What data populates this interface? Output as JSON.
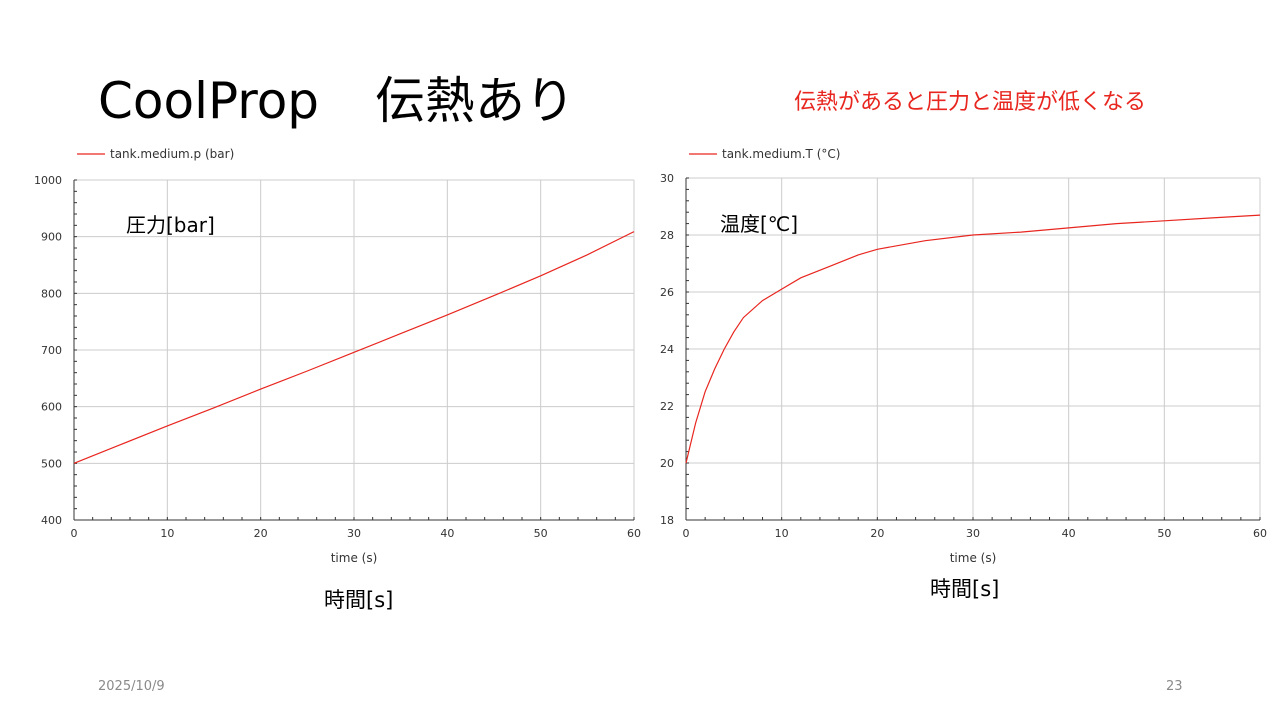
{
  "slide": {
    "title_en": "CoolProp",
    "title_jp": "伝熱あり",
    "note": "伝熱があると圧力と温度が低くなる",
    "date": "2025/10/9",
    "page": "23"
  },
  "colors": {
    "series": "#e8261f",
    "grid": "#cccccc",
    "axis": "#333333"
  },
  "chart_data": [
    {
      "type": "line",
      "xlabel": "time (s)",
      "ylabel": "",
      "xlim": [
        0,
        60
      ],
      "ylim": [
        400,
        1000
      ],
      "xticks": [
        0,
        10,
        20,
        30,
        40,
        50,
        60
      ],
      "yticks": [
        400,
        500,
        600,
        700,
        800,
        900,
        1000
      ],
      "legend_position": "top-left",
      "grid": true,
      "annotation": "圧力[bar]",
      "caption": "時間[s]",
      "series": [
        {
          "name": "tank.medium.p (bar)",
          "x": [
            0,
            5,
            10,
            15,
            20,
            25,
            30,
            35,
            40,
            45,
            50,
            55,
            60
          ],
          "y": [
            500,
            533,
            566,
            598,
            631,
            663,
            696,
            729,
            762,
            796,
            831,
            868,
            909
          ]
        }
      ]
    },
    {
      "type": "line",
      "xlabel": "time (s)",
      "ylabel": "",
      "xlim": [
        0,
        60
      ],
      "ylim": [
        18,
        30
      ],
      "xticks": [
        0,
        10,
        20,
        30,
        40,
        50,
        60
      ],
      "yticks": [
        18,
        20,
        22,
        24,
        26,
        28,
        30
      ],
      "legend_position": "top-left",
      "grid": true,
      "annotation": "温度[℃]",
      "caption": "時間[s]",
      "series": [
        {
          "name": "tank.medium.T (°C)",
          "x": [
            0,
            1,
            2,
            3,
            4,
            5,
            6,
            8,
            10,
            12,
            15,
            18,
            20,
            25,
            30,
            35,
            40,
            45,
            50,
            55,
            60
          ],
          "y": [
            20.0,
            21.4,
            22.5,
            23.3,
            24.0,
            24.6,
            25.1,
            25.7,
            26.1,
            26.5,
            26.9,
            27.3,
            27.5,
            27.8,
            28.0,
            28.1,
            28.25,
            28.4,
            28.5,
            28.6,
            28.7
          ]
        }
      ]
    }
  ]
}
